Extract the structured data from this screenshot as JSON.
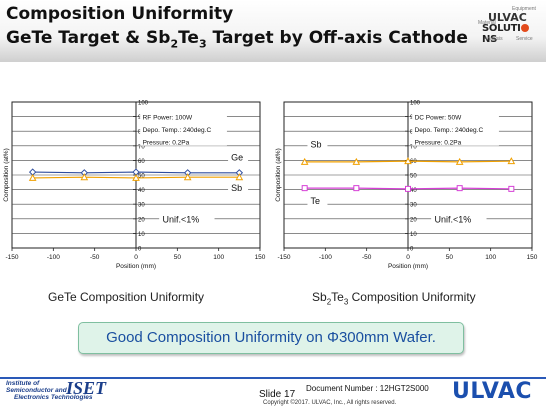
{
  "header": {
    "title1": "Composition Uniformity",
    "title2_pre": "GeTe Target & Sb",
    "title2_sub1": "2",
    "title2_mid": "Te",
    "title2_sub2": "3",
    "title2_post": " Target by Off-axis Cathode"
  },
  "logo": {
    "line1": "ULVAC",
    "line2_pre": "SOLUTI",
    "line2_post": "NS",
    "small1": "Equipment",
    "small2": "Material",
    "small3": "Analysis",
    "small4": "Service"
  },
  "chart_data": [
    {
      "type": "line",
      "xlabel": "Position (mm)",
      "ylabel": "Composition (at%)",
      "xlim": [
        -150,
        150
      ],
      "ylim": [
        0,
        100
      ],
      "xticks": [
        -150,
        -100,
        -50,
        0,
        50,
        100,
        150
      ],
      "yticks": [
        0,
        10,
        20,
        30,
        40,
        50,
        60,
        70,
        80,
        90,
        100
      ],
      "x": [
        -125,
        -62.5,
        0,
        62.5,
        125
      ],
      "series": [
        {
          "name": "Ge",
          "values": [
            52,
            51.5,
            52,
            51.5,
            51.5
          ],
          "color": "#2f4d9e",
          "marker": "diamond"
        },
        {
          "name": "Sb",
          "values": [
            48,
            48.5,
            48,
            48.5,
            48.5
          ],
          "color": "#f0a000",
          "marker": "triangle"
        }
      ],
      "annotations": {
        "rf": "RF Power: 100W",
        "depo": "Depo. Temp.: 240deg.C",
        "pressure": "Pressure: 0.2Pa",
        "unif": "Unif.<1%"
      }
    },
    {
      "type": "line",
      "xlabel": "Position (mm)",
      "ylabel": "Composition (at%)",
      "xlim": [
        -150,
        150
      ],
      "ylim": [
        0,
        100
      ],
      "xticks": [
        -150,
        -100,
        -50,
        0,
        50,
        100,
        150
      ],
      "yticks": [
        0,
        10,
        20,
        30,
        40,
        50,
        60,
        70,
        80,
        90,
        100
      ],
      "x": [
        -125,
        -62.5,
        0,
        62.5,
        125
      ],
      "series": [
        {
          "name": "Sb",
          "values": [
            59,
            59,
            59.5,
            59,
            59.5
          ],
          "color": "#f0a000",
          "marker": "triangle"
        },
        {
          "name": "Te",
          "values": [
            41,
            41,
            40.5,
            41,
            40.5
          ],
          "color": "#d63fd6",
          "marker": "square"
        }
      ],
      "annotations": {
        "rf": "DC Power: 50W",
        "depo": "Depo. Temp.: 240deg.C",
        "pressure": "Pressure: 0.2Pa",
        "unif": "Unif.<1%"
      }
    }
  ],
  "captions": {
    "left": "GeTe Composition Uniformity",
    "right_pre": "Sb",
    "right_sub1": "2",
    "right_mid": "Te",
    "right_sub2": "3",
    "right_post": " Composition Uniformity"
  },
  "banner": "Good Composition Uniformity on Φ300mm Wafer.",
  "footer": {
    "inst1": "Institute of",
    "inst2": "Semiconductor and",
    "inst3": "Electronics Technologies",
    "iset": "ISET",
    "slide": "Slide 17",
    "docnum": "Document Number : 12HGT2S000",
    "copyright": "Copyright ©2017. ULVAC, Inc., All rights reserved.",
    "ulvac": "ULVAC"
  },
  "colors": {
    "accent": "#1b4fae",
    "banner_bg": "#dff3e9",
    "banner_text": "#1a4fa0"
  }
}
